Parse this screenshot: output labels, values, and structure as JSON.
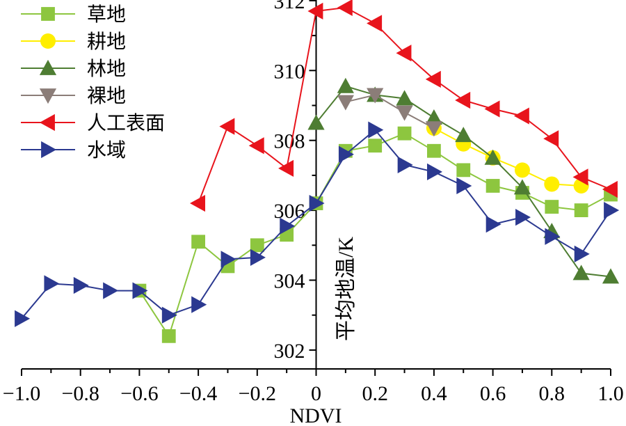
{
  "chart_data": {
    "type": "line",
    "xlabel": "NDVI",
    "ylabel": "平均地温/K",
    "xlim": [
      -1.0,
      1.0
    ],
    "ylim": [
      301.5,
      312.5
    ],
    "x_ticks": [
      -1.0,
      -0.8,
      -0.6,
      -0.4,
      -0.2,
      0,
      0.2,
      0.4,
      0.6,
      0.8,
      1.0
    ],
    "x_tick_labels": [
      "-1.0",
      "-0.8",
      "-0.6",
      "-0.4",
      "-0.2",
      "0",
      "0.2",
      "0.4",
      "0.6",
      "0.8",
      "1.0"
    ],
    "y_ticks": [
      302,
      304,
      306,
      308,
      310,
      312
    ],
    "y_tick_labels": [
      "302",
      "304",
      "306",
      "308",
      "310",
      "312"
    ],
    "grid": false,
    "legend_position": "top-left",
    "series": [
      {
        "name": "草地",
        "color": "#8dc63f",
        "marker": "square",
        "points": [
          [
            -0.6,
            303.7
          ],
          [
            -0.5,
            302.4
          ],
          [
            -0.4,
            305.1
          ],
          [
            -0.3,
            304.4
          ],
          [
            -0.2,
            305.0
          ],
          [
            -0.1,
            305.3
          ],
          [
            0.0,
            306.2
          ],
          [
            0.1,
            307.7
          ],
          [
            0.2,
            307.85
          ],
          [
            0.3,
            308.2
          ],
          [
            0.4,
            307.7
          ],
          [
            0.5,
            307.15
          ],
          [
            0.6,
            306.7
          ],
          [
            0.7,
            306.5
          ],
          [
            0.8,
            306.1
          ],
          [
            0.9,
            306.0
          ],
          [
            1.0,
            306.45
          ]
        ]
      },
      {
        "name": "耕地",
        "color": "#ffee00",
        "marker": "circle",
        "points": [
          [
            0.4,
            308.35
          ],
          [
            0.5,
            307.9
          ],
          [
            0.6,
            307.5
          ],
          [
            0.7,
            307.15
          ],
          [
            0.8,
            306.75
          ],
          [
            0.9,
            306.7
          ]
        ]
      },
      {
        "name": "林地",
        "color": "#4e7d32",
        "marker": "triangle-up",
        "points": [
          [
            0.0,
            308.5
          ],
          [
            0.1,
            309.55
          ],
          [
            0.2,
            309.3
          ],
          [
            0.3,
            309.2
          ],
          [
            0.4,
            308.65
          ],
          [
            0.5,
            308.15
          ],
          [
            0.6,
            307.5
          ],
          [
            0.7,
            306.65
          ],
          [
            0.8,
            305.4
          ],
          [
            0.9,
            304.2
          ],
          [
            1.0,
            304.1
          ]
        ]
      },
      {
        "name": "裸地",
        "color": "#8b7d78",
        "marker": "triangle-down",
        "points": [
          [
            0.1,
            309.1
          ],
          [
            0.2,
            309.3
          ],
          [
            0.3,
            308.8
          ],
          [
            0.4,
            308.35
          ]
        ]
      },
      {
        "name": "人工表面",
        "color": "#e8141c",
        "marker": "triangle-left",
        "points": [
          [
            -0.4,
            306.2
          ],
          [
            -0.3,
            308.4
          ],
          [
            -0.2,
            307.85
          ],
          [
            -0.1,
            307.2
          ],
          [
            0.0,
            311.7
          ],
          [
            0.1,
            311.8
          ],
          [
            0.2,
            311.35
          ],
          [
            0.3,
            310.5
          ],
          [
            0.4,
            309.75
          ],
          [
            0.5,
            309.15
          ],
          [
            0.6,
            308.9
          ],
          [
            0.7,
            308.7
          ],
          [
            0.8,
            308.05
          ],
          [
            0.9,
            306.95
          ],
          [
            1.0,
            306.6
          ]
        ]
      },
      {
        "name": "水域",
        "color": "#2b3990",
        "marker": "triangle-right",
        "points": [
          [
            -1.0,
            302.9
          ],
          [
            -0.9,
            303.9
          ],
          [
            -0.8,
            303.85
          ],
          [
            -0.7,
            303.7
          ],
          [
            -0.6,
            303.7
          ],
          [
            -0.5,
            303.0
          ],
          [
            -0.4,
            303.3
          ],
          [
            -0.3,
            304.6
          ],
          [
            -0.2,
            304.65
          ],
          [
            -0.1,
            305.55
          ],
          [
            0.0,
            306.2
          ],
          [
            0.1,
            307.6
          ],
          [
            0.2,
            308.3
          ],
          [
            0.3,
            307.3
          ],
          [
            0.4,
            307.1
          ],
          [
            0.5,
            306.7
          ],
          [
            0.6,
            305.6
          ],
          [
            0.7,
            305.8
          ],
          [
            0.8,
            305.25
          ],
          [
            0.9,
            304.75
          ],
          [
            1.0,
            306.0
          ]
        ]
      }
    ]
  }
}
